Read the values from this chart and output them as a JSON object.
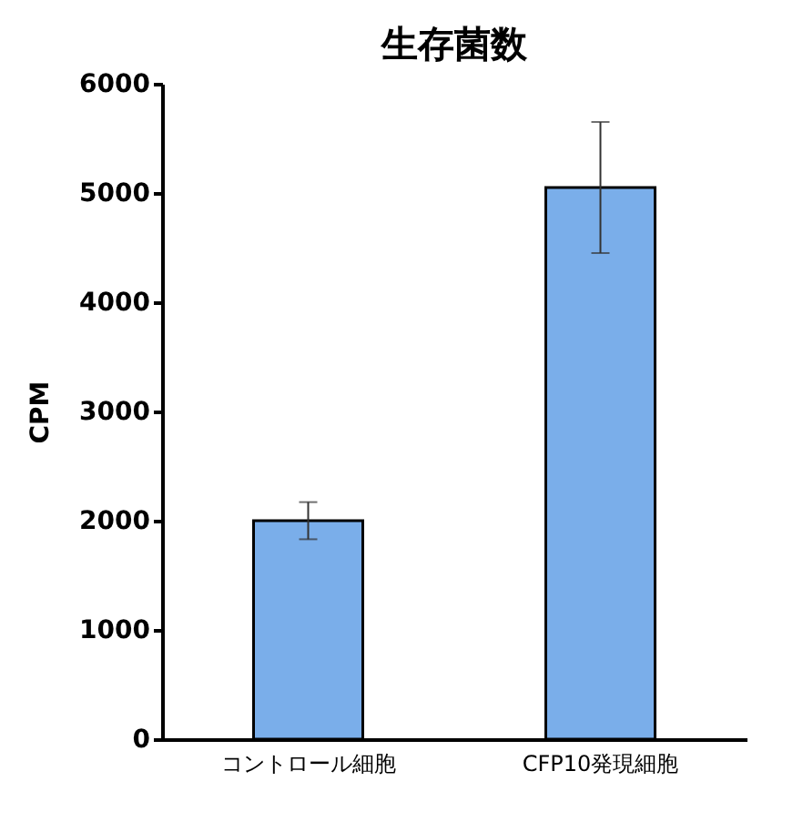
{
  "chart_data": {
    "type": "bar",
    "title": "生存菌数",
    "ylabel": "CPM",
    "categories": [
      "コントロール細胞",
      "CFP10発現細胞"
    ],
    "values": [
      2000,
      5050
    ],
    "errors": [
      [
        1830,
        2170
      ],
      [
        4450,
        5650
      ]
    ],
    "color": "#7aaeea",
    "ylim": [
      0,
      6000
    ],
    "yticks": [
      0,
      1000,
      2000,
      3000,
      4000,
      5000,
      6000
    ],
    "grid": false
  }
}
